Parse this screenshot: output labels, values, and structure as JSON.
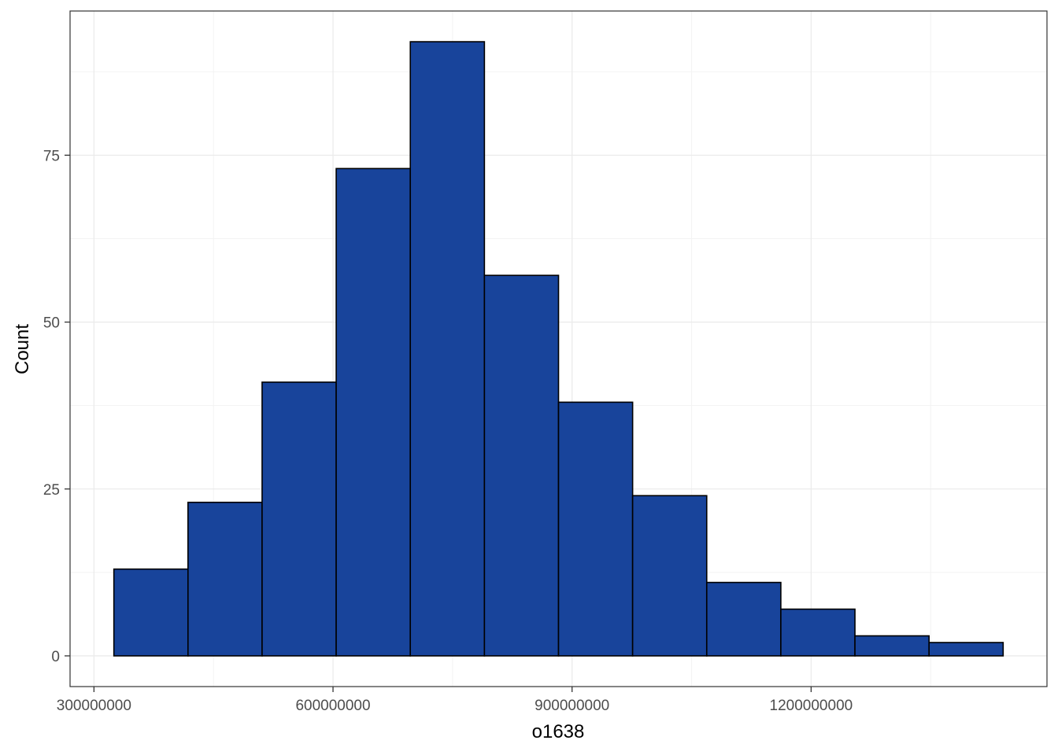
{
  "chart_data": {
    "type": "bar",
    "variant": "histogram",
    "title": "",
    "xlabel": "o1638",
    "ylabel": "Count",
    "bins": [
      {
        "x0": 325000000,
        "x1": 418000000,
        "count": 13
      },
      {
        "x0": 418000000,
        "x1": 511000000,
        "count": 23
      },
      {
        "x0": 511000000,
        "x1": 604000000,
        "count": 41
      },
      {
        "x0": 604000000,
        "x1": 697000000,
        "count": 73
      },
      {
        "x0": 697000000,
        "x1": 790000000,
        "count": 92
      },
      {
        "x0": 790000000,
        "x1": 883000000,
        "count": 57
      },
      {
        "x0": 883000000,
        "x1": 976000000,
        "count": 38
      },
      {
        "x0": 976000000,
        "x1": 1069000000,
        "count": 24
      },
      {
        "x0": 1069000000,
        "x1": 1162000000,
        "count": 11
      },
      {
        "x0": 1162000000,
        "x1": 1255000000,
        "count": 7
      },
      {
        "x0": 1255000000,
        "x1": 1348000000,
        "count": 3
      },
      {
        "x0": 1348000000,
        "x1": 1441000000,
        "count": 2
      }
    ],
    "xlim": [
      270000000,
      1496000000
    ],
    "ylim": [
      -4.6,
      96.6
    ],
    "x_ticks": [
      {
        "value": 300000000,
        "label": "300000000"
      },
      {
        "value": 600000000,
        "label": "600000000"
      },
      {
        "value": 900000000,
        "label": "900000000"
      },
      {
        "value": 1200000000,
        "label": "1200000000"
      }
    ],
    "x_minor": [
      450000000,
      750000000,
      1050000000,
      1350000000
    ],
    "y_ticks": [
      {
        "value": 0,
        "label": "0"
      },
      {
        "value": 25,
        "label": "25"
      },
      {
        "value": 50,
        "label": "50"
      },
      {
        "value": 75,
        "label": "75"
      }
    ],
    "y_minor": [
      12.5,
      37.5,
      62.5,
      87.5
    ],
    "grid": true,
    "colors": {
      "bar_fill": "#18449b",
      "bar_stroke": "#000000",
      "grid_major": "#ebebeb",
      "grid_minor": "#f3f3f3",
      "panel_border": "#333333"
    }
  }
}
